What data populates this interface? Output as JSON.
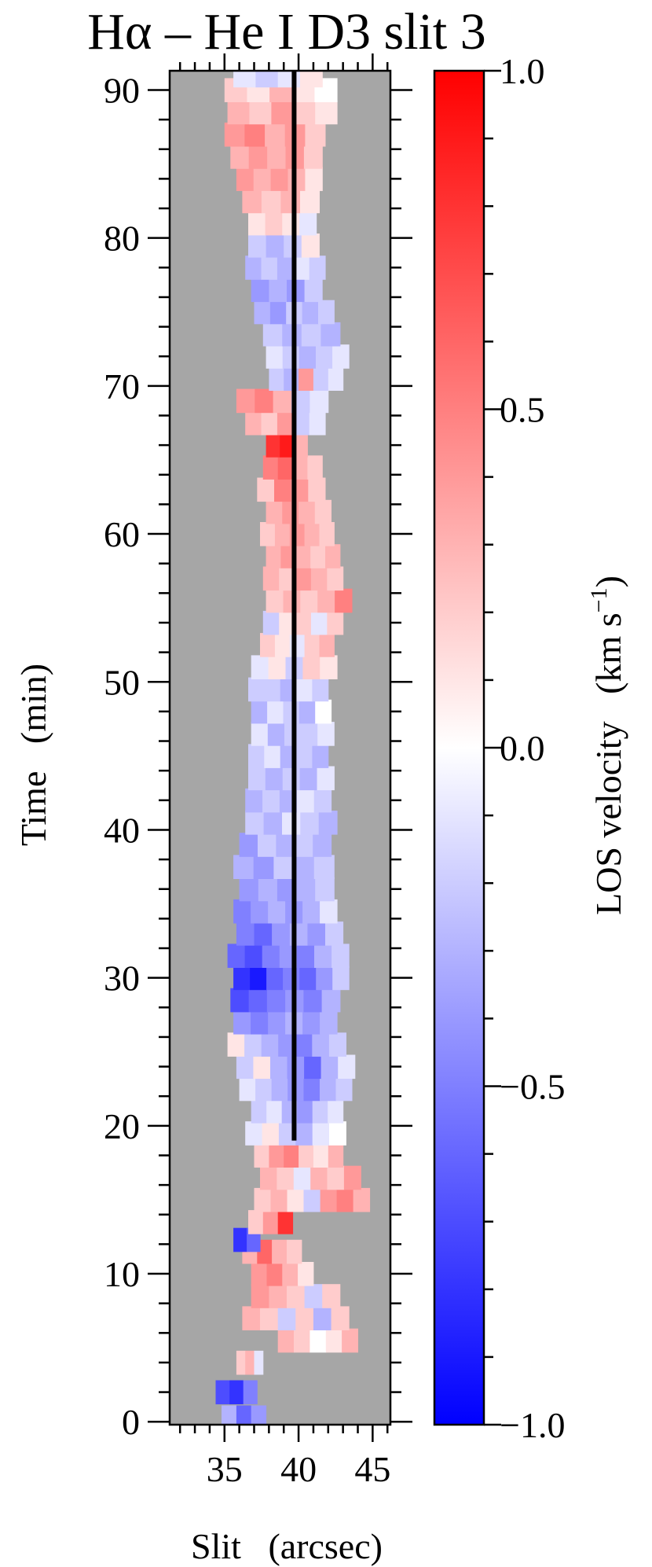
{
  "chart_data": {
    "type": "heatmap",
    "title": "Hα – He I D3 slit 3",
    "xlabel": "Slit   (arcsec)",
    "ylabel": "Time   (min)",
    "xlim": [
      31.3,
      46.2
    ],
    "ylim": [
      -0.2,
      91.3
    ],
    "x_ticks": [
      35,
      40,
      45
    ],
    "y_ticks": [
      0,
      10,
      20,
      30,
      40,
      50,
      60,
      70,
      80,
      90
    ],
    "x_tick_labels": [
      "35",
      "40",
      "45"
    ],
    "y_tick_labels": [
      "0",
      "10",
      "20",
      "30",
      "40",
      "50",
      "60",
      "70",
      "80",
      "90"
    ],
    "background_color": "#a6a6a6",
    "colorbar": {
      "label": "LOS velocity   (km s",
      "label_superscript": "−1",
      "label_close": ")",
      "range": [
        -1.0,
        1.0
      ],
      "ticks": [
        1.0,
        0.5,
        0.0,
        -0.5,
        -1.0
      ],
      "tick_labels": [
        "1.0",
        "0.5",
        "0.0",
        "−0.5",
        "−1.0"
      ],
      "colormap": [
        "#0000ff",
        "#ffffff",
        "#ff0000"
      ]
    },
    "reference_line": {
      "x": 39.7,
      "y_from": 19,
      "y_to": 91.3,
      "color": "#000000"
    },
    "rows": [
      {
        "t": 0.3,
        "start": 34.8,
        "end": 37.8,
        "v": [
          -0.3,
          -0.6,
          -0.4
        ]
      },
      {
        "t": 2.0,
        "start": 34.4,
        "end": 37.2,
        "v": [
          -0.7,
          -0.8,
          -0.5
        ]
      },
      {
        "t": 4.0,
        "start": 35.8,
        "end": 37.6,
        "v": [
          0.2,
          0.3,
          -0.1
        ]
      },
      {
        "t": 5.5,
        "start": 38.6,
        "end": 44.0,
        "v": [
          0.3,
          0.2,
          0.0,
          0.1,
          0.3
        ]
      },
      {
        "t": 7.0,
        "start": 36.2,
        "end": 43.4,
        "v": [
          0.3,
          0.2,
          -0.2,
          0.2,
          -0.3,
          0.2
        ]
      },
      {
        "t": 8.5,
        "start": 36.8,
        "end": 42.8,
        "v": [
          0.4,
          0.3,
          0.2,
          -0.2,
          0.2
        ]
      },
      {
        "t": 10.0,
        "start": 36.8,
        "end": 41.0,
        "v": [
          0.4,
          0.5,
          0.3,
          0.1
        ]
      },
      {
        "t": 11.5,
        "start": 36.2,
        "end": 40.2,
        "v": [
          0.3,
          0.6,
          0.3,
          0.2
        ]
      },
      {
        "t": 12.3,
        "start": 35.6,
        "end": 37.4,
        "v": [
          -0.8,
          -0.6
        ]
      },
      {
        "t": 13.5,
        "start": 36.6,
        "end": 39.6,
        "v": [
          0.2,
          0.4,
          0.8
        ]
      },
      {
        "t": 15.0,
        "start": 37.0,
        "end": 44.8,
        "v": [
          0.2,
          0.3,
          0.1,
          -0.2,
          0.4,
          0.5,
          0.3
        ]
      },
      {
        "t": 16.5,
        "start": 37.4,
        "end": 44.2,
        "v": [
          0.3,
          0.2,
          -0.1,
          0.3,
          0.2,
          0.4
        ]
      },
      {
        "t": 18.0,
        "start": 37.0,
        "end": 43.0,
        "v": [
          0.2,
          0.4,
          0.5,
          0.2,
          0.1,
          0.3
        ]
      },
      {
        "t": 19.5,
        "start": 36.4,
        "end": 43.2,
        "v": [
          -0.1,
          0.1,
          -0.2,
          -0.3,
          -0.1,
          0.0
        ]
      },
      {
        "t": 21.0,
        "start": 36.8,
        "end": 43.0,
        "v": [
          -0.2,
          -0.1,
          -0.3,
          -0.4,
          -0.2,
          -0.1
        ]
      },
      {
        "t": 22.5,
        "start": 36.0,
        "end": 43.6,
        "v": [
          -0.1,
          -0.2,
          -0.3,
          -0.4,
          -0.5,
          -0.3,
          -0.2
        ]
      },
      {
        "t": 24.0,
        "start": 35.8,
        "end": 43.8,
        "v": [
          -0.2,
          0.1,
          -0.3,
          -0.4,
          -0.6,
          -0.3,
          -0.1
        ]
      },
      {
        "t": 25.5,
        "start": 35.2,
        "end": 43.2,
        "v": [
          0.1,
          -0.2,
          -0.3,
          -0.4,
          -0.5,
          -0.3,
          -0.2
        ]
      },
      {
        "t": 27.0,
        "start": 35.6,
        "end": 42.6,
        "v": [
          -0.4,
          -0.5,
          -0.4,
          -0.3,
          -0.4,
          -0.3
        ]
      },
      {
        "t": 28.5,
        "start": 35.4,
        "end": 42.8,
        "v": [
          -0.7,
          -0.6,
          -0.5,
          -0.4,
          -0.5,
          -0.3
        ]
      },
      {
        "t": 30.0,
        "start": 35.6,
        "end": 43.4,
        "v": [
          -0.8,
          -0.9,
          -0.6,
          -0.5,
          -0.6,
          -0.4,
          -0.2
        ]
      },
      {
        "t": 31.5,
        "start": 35.2,
        "end": 43.4,
        "v": [
          -0.6,
          -0.7,
          -0.5,
          -0.4,
          -0.5,
          -0.3,
          -0.2
        ]
      },
      {
        "t": 33.0,
        "start": 35.8,
        "end": 43.0,
        "v": [
          -0.5,
          -0.6,
          -0.4,
          -0.3,
          -0.4,
          -0.2
        ]
      },
      {
        "t": 34.5,
        "start": 35.6,
        "end": 42.6,
        "v": [
          -0.5,
          -0.4,
          -0.3,
          -0.4,
          -0.3,
          -0.1
        ]
      },
      {
        "t": 36.0,
        "start": 36.0,
        "end": 42.4,
        "v": [
          -0.4,
          -0.3,
          -0.4,
          -0.3,
          -0.2
        ]
      },
      {
        "t": 37.5,
        "start": 35.6,
        "end": 42.4,
        "v": [
          -0.3,
          -0.4,
          -0.2,
          -0.3,
          -0.2
        ]
      },
      {
        "t": 39.0,
        "start": 36.0,
        "end": 42.2,
        "v": [
          -0.4,
          -0.2,
          -0.3,
          -0.2,
          -0.3
        ]
      },
      {
        "t": 40.5,
        "start": 36.4,
        "end": 42.6,
        "v": [
          -0.2,
          -0.3,
          -0.1,
          -0.2,
          -0.3
        ]
      },
      {
        "t": 42.0,
        "start": 36.4,
        "end": 42.2,
        "v": [
          -0.3,
          -0.2,
          -0.3,
          -0.1,
          -0.2
        ]
      },
      {
        "t": 43.5,
        "start": 36.6,
        "end": 42.4,
        "v": [
          -0.2,
          -0.3,
          -0.2,
          -0.3,
          -0.1
        ]
      },
      {
        "t": 45.0,
        "start": 36.6,
        "end": 42.0,
        "v": [
          -0.2,
          -0.1,
          -0.3,
          -0.2,
          -0.3
        ]
      },
      {
        "t": 46.5,
        "start": 36.8,
        "end": 42.4,
        "v": [
          -0.1,
          -0.3,
          -0.2,
          -0.2,
          -0.1
        ]
      },
      {
        "t": 48.0,
        "start": 36.8,
        "end": 42.2,
        "v": [
          -0.3,
          -0.1,
          -0.2,
          -0.3,
          0.0
        ]
      },
      {
        "t": 49.5,
        "start": 36.6,
        "end": 42.0,
        "v": [
          -0.2,
          -0.2,
          -0.3,
          -0.1,
          -0.2
        ]
      },
      {
        "t": 51.0,
        "start": 36.8,
        "end": 42.6,
        "v": [
          -0.1,
          0.1,
          -0.2,
          0.2,
          0.1
        ]
      },
      {
        "t": 52.5,
        "start": 37.4,
        "end": 42.4,
        "v": [
          0.2,
          0.1,
          -0.1,
          0.2,
          0.3
        ]
      },
      {
        "t": 54.0,
        "start": 37.6,
        "end": 43.0,
        "v": [
          -0.2,
          0.1,
          0.2,
          -0.1,
          0.2
        ]
      },
      {
        "t": 55.5,
        "start": 37.8,
        "end": 43.6,
        "v": [
          0.2,
          0.3,
          0.2,
          0.3,
          0.5
        ]
      },
      {
        "t": 57.0,
        "start": 37.6,
        "end": 43.0,
        "v": [
          0.3,
          0.2,
          0.4,
          0.3,
          0.2
        ]
      },
      {
        "t": 58.5,
        "start": 37.8,
        "end": 42.8,
        "v": [
          0.3,
          0.4,
          0.3,
          0.2,
          0.3
        ]
      },
      {
        "t": 60.0,
        "start": 37.4,
        "end": 42.4,
        "v": [
          0.2,
          0.3,
          0.4,
          0.3,
          0.2
        ]
      },
      {
        "t": 61.5,
        "start": 37.8,
        "end": 42.2,
        "v": [
          0.3,
          0.4,
          0.3,
          0.2
        ]
      },
      {
        "t": 63.0,
        "start": 37.2,
        "end": 41.8,
        "v": [
          0.2,
          0.5,
          0.4,
          0.2
        ]
      },
      {
        "t": 64.5,
        "start": 37.6,
        "end": 41.6,
        "v": [
          0.5,
          0.6,
          0.3,
          0.2
        ]
      },
      {
        "t": 66.0,
        "start": 37.8,
        "end": 40.6,
        "v": [
          0.8,
          0.9,
          0.3
        ]
      },
      {
        "t": 67.5,
        "start": 36.4,
        "end": 41.8,
        "v": [
          0.3,
          0.2,
          0.4,
          -0.2,
          -0.1
        ]
      },
      {
        "t": 69.0,
        "start": 35.8,
        "end": 42.0,
        "v": [
          0.4,
          0.5,
          0.3,
          -0.2,
          -0.1
        ]
      },
      {
        "t": 70.5,
        "start": 38.0,
        "end": 43.0,
        "v": [
          -0.2,
          -0.3,
          0.4,
          -0.2,
          -0.1
        ]
      },
      {
        "t": 72.0,
        "start": 37.8,
        "end": 43.4,
        "v": [
          -0.1,
          -0.2,
          -0.3,
          -0.2,
          -0.1
        ]
      },
      {
        "t": 73.5,
        "start": 37.6,
        "end": 42.8,
        "v": [
          -0.2,
          -0.3,
          -0.2,
          -0.3
        ]
      },
      {
        "t": 75.0,
        "start": 37.0,
        "end": 42.4,
        "v": [
          -0.3,
          -0.4,
          -0.2,
          -0.3,
          -0.2
        ]
      },
      {
        "t": 76.5,
        "start": 36.8,
        "end": 41.6,
        "v": [
          -0.4,
          -0.3,
          -0.4,
          -0.2
        ]
      },
      {
        "t": 78.0,
        "start": 36.4,
        "end": 41.8,
        "v": [
          -0.3,
          -0.2,
          -0.3,
          -0.1,
          -0.2
        ]
      },
      {
        "t": 79.5,
        "start": 36.6,
        "end": 41.4,
        "v": [
          -0.2,
          -0.3,
          -0.2,
          0.1
        ]
      },
      {
        "t": 81.0,
        "start": 36.6,
        "end": 41.2,
        "v": [
          0.1,
          0.2,
          0.1,
          -0.1
        ]
      },
      {
        "t": 82.5,
        "start": 36.2,
        "end": 41.4,
        "v": [
          0.3,
          0.2,
          0.3,
          0.1
        ]
      },
      {
        "t": 84.0,
        "start": 35.8,
        "end": 41.6,
        "v": [
          0.4,
          0.3,
          0.4,
          0.3,
          0.1
        ]
      },
      {
        "t": 85.5,
        "start": 35.4,
        "end": 41.6,
        "v": [
          0.3,
          0.4,
          0.3,
          0.4,
          0.2
        ]
      },
      {
        "t": 87.0,
        "start": 35.0,
        "end": 41.8,
        "v": [
          0.4,
          0.5,
          0.3,
          0.4,
          0.2
        ]
      },
      {
        "t": 88.5,
        "start": 35.2,
        "end": 42.6,
        "v": [
          0.3,
          0.2,
          0.4,
          0.2,
          0.1
        ]
      },
      {
        "t": 90.0,
        "start": 35.0,
        "end": 42.6,
        "v": [
          0.2,
          0.1,
          0.3,
          0.1,
          0.0
        ]
      },
      {
        "t": 91.0,
        "start": 35.6,
        "end": 41.6,
        "v": [
          -0.1,
          -0.2,
          -0.1,
          0.1
        ]
      }
    ]
  }
}
